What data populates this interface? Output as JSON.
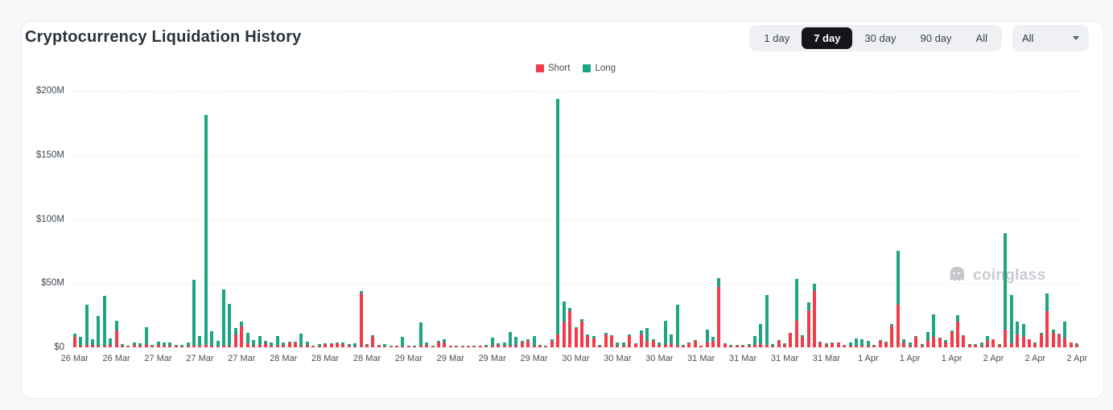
{
  "header": {
    "title": "Cryptocurrency Liquidation History",
    "range_buttons": [
      "1 day",
      "7 day",
      "30 day",
      "90 day",
      "All"
    ],
    "active_range": "7 day",
    "filter_value": "All"
  },
  "legend": [
    {
      "label": "Short",
      "color": "#f23c4a"
    },
    {
      "label": "Long",
      "color": "#1ea583"
    }
  ],
  "watermark": {
    "text": "coinglass"
  },
  "chart_data": {
    "type": "bar",
    "stacked": true,
    "unit": "$M",
    "ylim": [
      0,
      200
    ],
    "grid": "dashed-horizontal",
    "legend_position": "top-center",
    "y_ticks": [
      {
        "value": 200,
        "label": "$200M"
      },
      {
        "value": 150,
        "label": "$150M"
      },
      {
        "value": 100,
        "label": "$100M"
      },
      {
        "value": 50,
        "label": "$50M"
      },
      {
        "value": 0,
        "label": "$0"
      }
    ],
    "x_tick_every": 7,
    "x_tick_labels": [
      "26 Mar",
      "26 Mar",
      "27 Mar",
      "27 Mar",
      "27 Mar",
      "28 Mar",
      "28 Mar",
      "28 Mar",
      "29 Mar",
      "29 Mar",
      "29 Mar",
      "29 Mar",
      "30 Mar",
      "30 Mar",
      "30 Mar",
      "31 Mar",
      "31 Mar",
      "31 Mar",
      "31 Mar",
      "1 Apr",
      "1 Apr",
      "1 Apr",
      "2 Apr",
      "2 Apr",
      "2 Apr"
    ],
    "series": [
      {
        "name": "Short",
        "color": "#f23c4a",
        "values": [
          8,
          1,
          2,
          2,
          1.5,
          1,
          2,
          13,
          1,
          0.5,
          2,
          1,
          2.5,
          1,
          2,
          1.5,
          1,
          1,
          0.5,
          1,
          1.5,
          1,
          2,
          1,
          0.5,
          1,
          1,
          10,
          16,
          3,
          1,
          2,
          3,
          1.5,
          1,
          2,
          4,
          4,
          1.5,
          2,
          0.5,
          1,
          2.5,
          2.5,
          3,
          2.5,
          1.5,
          0.5,
          42,
          2,
          8,
          1.5,
          0.5,
          0.5,
          1,
          0.5,
          0.5,
          0.5,
          1,
          2,
          0.5,
          4,
          3.5,
          1,
          0.5,
          0.5,
          1,
          0.5,
          1,
          0.5,
          1,
          2,
          1,
          1,
          1.5,
          4,
          5,
          1.5,
          1.5,
          0.5,
          5,
          10,
          20,
          28,
          15,
          20,
          9,
          7,
          1.5,
          10,
          9,
          1,
          1,
          9,
          2.5,
          10,
          5,
          5,
          2,
          2,
          3,
          1,
          1.5,
          3,
          5,
          1,
          4,
          5,
          47,
          2.5,
          1,
          1.5,
          1,
          1.5,
          2,
          3,
          2,
          1.5,
          5,
          2,
          11,
          21,
          8,
          29,
          44,
          4,
          2,
          3,
          3.5,
          1.5,
          1,
          1.5,
          1,
          1.5,
          1,
          5,
          4,
          17,
          33,
          4,
          1,
          8,
          1.5,
          5,
          8,
          7,
          4,
          12,
          20,
          9,
          2,
          2,
          1,
          5,
          6,
          2,
          14,
          3,
          10,
          8,
          6,
          3,
          10,
          28,
          11,
          10,
          7,
          3.5,
          2
        ]
      },
      {
        "name": "Long",
        "color": "#1ea583",
        "values": [
          2.5,
          7,
          31,
          4,
          23,
          39,
          5,
          8,
          1.5,
          1,
          1.5,
          2,
          13,
          1,
          2.5,
          2,
          2.5,
          1,
          1.5,
          2.5,
          51,
          7.5,
          179,
          11.5,
          4.5,
          44,
          33,
          5,
          4,
          8.5,
          4.5,
          6.5,
          2,
          2.5,
          8,
          1.5,
          0.5,
          0.5,
          9,
          2.5,
          0.5,
          1.5,
          0.5,
          0.5,
          0.5,
          1,
          1,
          2.5,
          2,
          0.5,
          1.5,
          0.5,
          2,
          0.5,
          0.5,
          7.5,
          0.5,
          1,
          18.5,
          2,
          1,
          1,
          3,
          0.5,
          1,
          0.5,
          0.5,
          1,
          0.5,
          1.5,
          6.5,
          1,
          3,
          11,
          6.5,
          1,
          1,
          7,
          0.5,
          0.5,
          1,
          184,
          16,
          3,
          1,
          2,
          1,
          2,
          0.5,
          1,
          0.5,
          3,
          3,
          1,
          0.5,
          3,
          10,
          1.5,
          2,
          19,
          7,
          32,
          0.5,
          0.5,
          0.5,
          0.5,
          10,
          3,
          7,
          0.5,
          1,
          0.5,
          1,
          1,
          7,
          15,
          39,
          1,
          0.5,
          1,
          0.5,
          32,
          1.5,
          6,
          5.5,
          0.5,
          1,
          0.5,
          0.5,
          0.5,
          3,
          5.5,
          5,
          3.5,
          1,
          0.5,
          0.5,
          1,
          42,
          2,
          2.5,
          0.5,
          1,
          7,
          18,
          0.5,
          1.5,
          1.5,
          5,
          0.5,
          0.5,
          0.5,
          3,
          4,
          0.5,
          0.5,
          75,
          38,
          10,
          10,
          0.5,
          0.5,
          1,
          14,
          2.5,
          0.5,
          13,
          0.5,
          1
        ]
      }
    ]
  }
}
